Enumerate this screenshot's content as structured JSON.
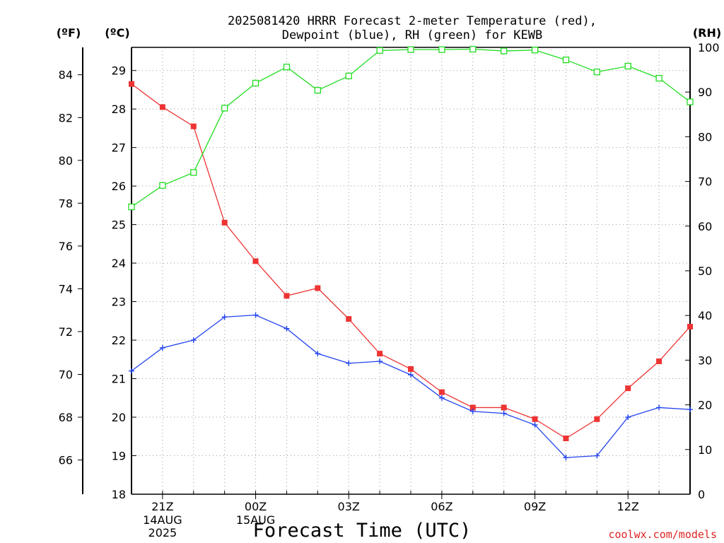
{
  "chart_data": {
    "type": "line",
    "title_line1": "2025081420 HRRR Forecast 2-meter Temperature (red),",
    "title_line2": "Dewpoint (blue), RH (green) for KEWB",
    "xlabel": "Forecast Time (UTC)",
    "unit_f": "(ºF)",
    "unit_c": "(ºC)",
    "unit_rh": "(RH)",
    "watermark": "coolwx.com/models",
    "x_hours": [
      20,
      21,
      22,
      23,
      24,
      25,
      26,
      27,
      28,
      29,
      30,
      31,
      32,
      33,
      34,
      35,
      36,
      37,
      38
    ],
    "x_ticks": [
      {
        "h": 21,
        "label": "21Z",
        "sub1": "14AUG",
        "sub2": "2025"
      },
      {
        "h": 24,
        "label": "00Z",
        "sub1": "15AUG",
        "sub2": ""
      },
      {
        "h": 27,
        "label": "03Z",
        "sub1": "",
        "sub2": ""
      },
      {
        "h": 30,
        "label": "06Z",
        "sub1": "",
        "sub2": ""
      },
      {
        "h": 33,
        "label": "09Z",
        "sub1": "",
        "sub2": ""
      },
      {
        "h": 36,
        "label": "12Z",
        "sub1": "",
        "sub2": ""
      }
    ],
    "ylim_c": [
      18,
      29.6
    ],
    "ylim_rh": [
      0,
      100
    ],
    "c_ticks": [
      18,
      19,
      20,
      21,
      22,
      23,
      24,
      25,
      26,
      27,
      28,
      29
    ],
    "f_ticks": [
      66,
      68,
      70,
      72,
      74,
      76,
      78,
      80,
      82,
      84
    ],
    "rh_ticks": [
      0,
      10,
      20,
      30,
      40,
      50,
      60,
      70,
      80,
      90,
      100
    ],
    "grid": true,
    "series": [
      {
        "name": "Temperature",
        "color": "#ee3333",
        "axis": "c",
        "marker": "filled-square",
        "values": [
          28.65,
          28.05,
          27.55,
          25.05,
          24.05,
          23.15,
          23.35,
          22.55,
          21.65,
          21.25,
          20.65,
          20.25,
          20.25,
          19.95,
          19.45,
          19.95,
          20.75,
          21.45,
          22.35
        ]
      },
      {
        "name": "Dewpoint",
        "color": "#2244ee",
        "axis": "c",
        "marker": "plus",
        "values": [
          21.2,
          21.8,
          22.0,
          22.6,
          22.65,
          22.3,
          21.65,
          21.4,
          21.45,
          21.1,
          20.5,
          20.15,
          20.1,
          19.8,
          18.95,
          19.0,
          20.0,
          20.25,
          20.2
        ]
      },
      {
        "name": "RH",
        "color": "#22dd22",
        "axis": "rh",
        "marker": "open-square",
        "values": [
          64.3,
          69.1,
          72.0,
          86.4,
          92.0,
          95.6,
          90.4,
          93.6,
          99.3,
          99.5,
          99.5,
          99.6,
          99.2,
          99.4,
          97.2,
          94.5,
          95.8,
          93.1,
          87.8
        ]
      }
    ]
  }
}
